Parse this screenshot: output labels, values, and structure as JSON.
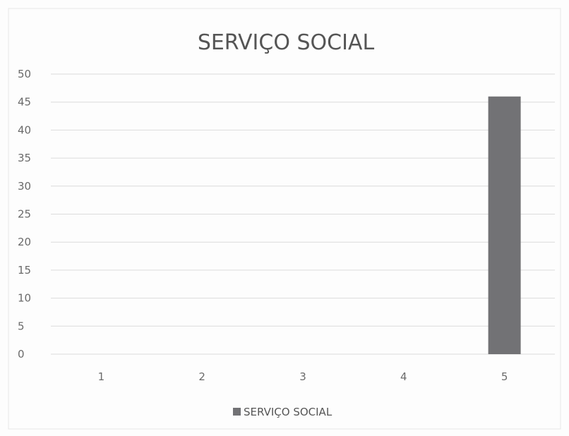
{
  "chart_data": {
    "type": "bar",
    "title": "SERVIÇO SOCIAL",
    "categories": [
      "1",
      "2",
      "3",
      "4",
      "5"
    ],
    "series": [
      {
        "name": "SERVIÇO SOCIAL",
        "values": [
          0,
          0,
          0,
          0,
          46
        ]
      }
    ],
    "ylim": [
      0,
      50
    ],
    "yticks": [
      "0",
      "5",
      "10",
      "15",
      "20",
      "25",
      "30",
      "35",
      "40",
      "45",
      "50"
    ],
    "xlabel": "",
    "ylabel": "",
    "grid": true,
    "legend": "bottom-center",
    "colors": {
      "bar": "#727275",
      "gridline": "#dcdcdc",
      "text": "#555555"
    }
  }
}
